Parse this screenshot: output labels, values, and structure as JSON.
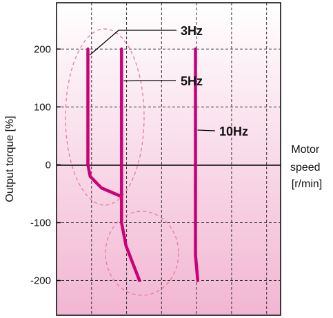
{
  "chart_data": {
    "type": "line",
    "title": "",
    "xlabel": "Motor speed [r/min]",
    "xlabel_lines": [
      "Motor",
      "speed",
      "[r/min]"
    ],
    "ylabel": "Output torque [%]",
    "yticks": [
      200,
      100,
      0,
      -100,
      -200
    ],
    "ytick_labels": [
      "200",
      "100",
      "0",
      "-100",
      "-200"
    ],
    "ylim": [
      -260,
      280
    ],
    "grid": true,
    "series": [
      {
        "name": "3Hz",
        "color": "#cc0077",
        "x": [
          0.14,
          0.14,
          0.15,
          0.2,
          0.29
        ],
        "y": [
          200,
          0,
          -20,
          -40,
          -55
        ]
      },
      {
        "name": "5Hz",
        "color": "#cc0077",
        "x": [
          0.29,
          0.29,
          0.31,
          0.37
        ],
        "y": [
          200,
          -100,
          -140,
          -200
        ]
      },
      {
        "name": "10Hz",
        "color": "#cc0077",
        "x": [
          0.62,
          0.62,
          0.63
        ],
        "y": [
          200,
          -155,
          -200
        ]
      }
    ]
  }
}
